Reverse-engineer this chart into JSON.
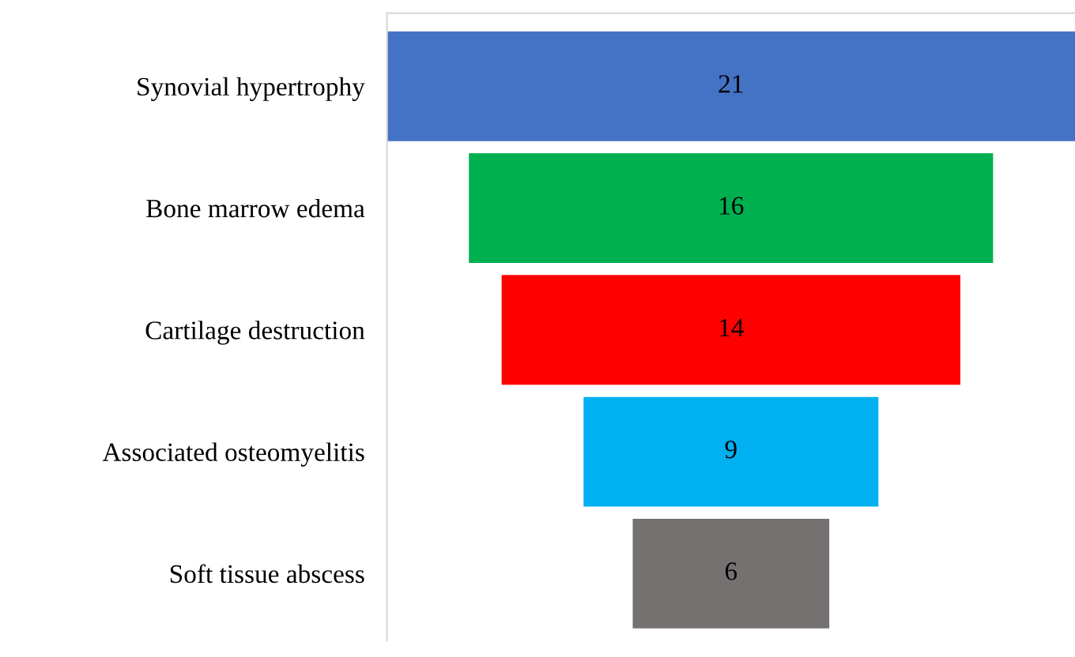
{
  "chart_data": {
    "type": "other",
    "categories": [
      "Synovial hypertrophy",
      "Bone marrow edema",
      "Cartilage destruction",
      "Associated osteomyelitis",
      "Soft tissue abscess"
    ],
    "values": [
      21,
      16,
      14,
      9,
      6
    ],
    "colors": [
      "#4472c4",
      "#00b050",
      "#ff0000",
      "#00b0f0",
      "#767171"
    ],
    "data_labels": true
  }
}
